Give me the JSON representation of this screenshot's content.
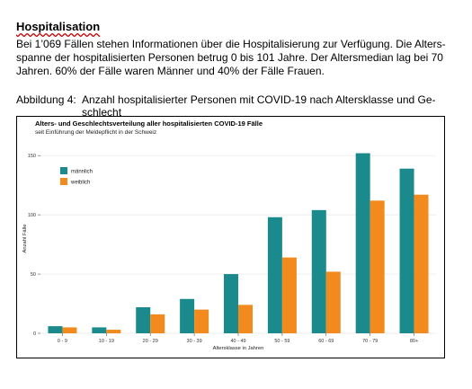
{
  "heading": "Hospitalisation",
  "paragraph": "Bei 1’069 Fällen stehen Informationen über die Hospitalisierung zur Verfügung. Die Alters-spanne der hospitalisierten Personen betrug 0 bis 101 Jahre. Der Altersmedian lag bei 70 Jahren. 60% der Fälle waren Männer und 40% der Fälle Frauen.",
  "caption": {
    "label": "Abbildung 4:",
    "text": "Anzahl hospitalisierter Personen mit COVID-19 nach Altersklasse und Ge-schlecht"
  },
  "chart_data": {
    "type": "bar",
    "title": "Alters- und Geschlechtsverteilung aller hospitalisierten COVID-19 Fälle",
    "subtitle": "seit Einführung der Meldepflicht in der Schweiz",
    "xlabel": "Altersklasse in Jahren",
    "ylabel": "Anzahl Fälle",
    "ylim": [
      0,
      160
    ],
    "yticks": [
      0,
      50,
      100,
      150
    ],
    "grid": true,
    "legend_position": "top-left",
    "categories": [
      "0 - 9",
      "10 - 19",
      "20 - 29",
      "30 - 39",
      "40 - 49",
      "50 - 59",
      "60 - 69",
      "70 - 79",
      "80+"
    ],
    "series": [
      {
        "name": "männlich",
        "color": "#1a8a8c",
        "values": [
          6,
          5,
          22,
          29,
          50,
          98,
          104,
          152,
          139
        ]
      },
      {
        "name": "weiblich",
        "color": "#f28a1e",
        "values": [
          5,
          3,
          16,
          20,
          24,
          64,
          52,
          112,
          117
        ]
      }
    ]
  }
}
